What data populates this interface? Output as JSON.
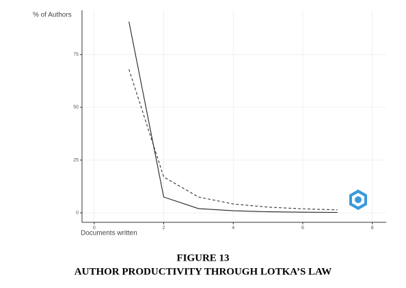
{
  "chart_data": {
    "type": "line",
    "y_label": "% of Authors",
    "x_label": "Documents written",
    "x": [
      1,
      2,
      3,
      4,
      5,
      6,
      7
    ],
    "series": [
      {
        "color": "#222222",
        "dash": false,
        "values": [
          90.6,
          7.5,
          2.0,
          1.0,
          0.5,
          0.3,
          0.2
        ]
      },
      {
        "color": "#333333",
        "dash": true,
        "values": [
          68,
          17,
          7.5,
          4.2,
          2.7,
          1.9,
          1.4
        ]
      }
    ],
    "xlim": [
      -0.35,
      8.4
    ],
    "xticks": [
      0,
      2,
      4,
      6,
      8
    ],
    "ylim": [
      -4.5,
      96
    ],
    "yticks": [
      0,
      25,
      50,
      75
    ],
    "grid": true
  },
  "caption": {
    "number": "FIGURE 13",
    "title": "AUTHOR PRODUCTIVITY THROUGH LOTKA’S LAW"
  }
}
